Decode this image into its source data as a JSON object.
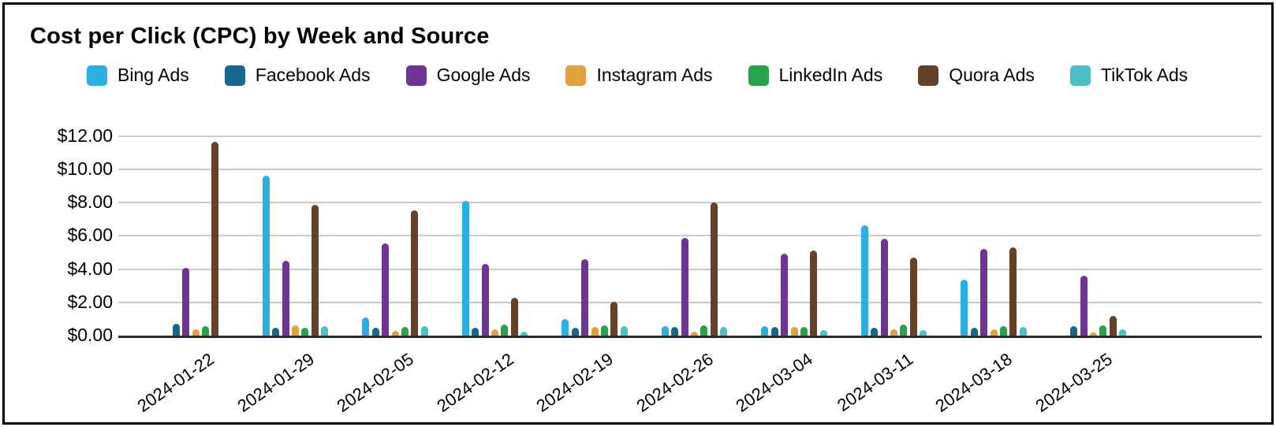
{
  "title": "Cost per Click (CPC) by Week and Source",
  "chart_data": {
    "type": "bar",
    "title": "Cost per Click (CPC) by Week and Source",
    "xlabel": "",
    "ylabel": "",
    "ylim": [
      0,
      12
    ],
    "ytick_step": 2,
    "yticks": [
      "$0.00",
      "$2.00",
      "$4.00",
      "$6.00",
      "$8.00",
      "$10.00",
      "$12.00"
    ],
    "grid": true,
    "legend_position": "top",
    "categories": [
      "2024-01-22",
      "2024-01-29",
      "2024-02-05",
      "2024-02-12",
      "2024-02-19",
      "2024-02-26",
      "2024-03-04",
      "2024-03-11",
      "2024-03-18",
      "2024-03-25"
    ],
    "series": [
      {
        "name": "Bing Ads",
        "color": "#29b0e3",
        "values": [
          0,
          9.6,
          1.1,
          8.1,
          1.0,
          0.55,
          0.55,
          6.65,
          3.35,
          0
        ]
      },
      {
        "name": "Facebook Ads",
        "color": "#17688f",
        "values": [
          0.7,
          0.45,
          0.45,
          0.45,
          0.45,
          0.5,
          0.5,
          0.45,
          0.45,
          0.55
        ]
      },
      {
        "name": "Google Ads",
        "color": "#6f3494",
        "values": [
          4.05,
          4.5,
          5.55,
          4.3,
          4.6,
          5.85,
          4.9,
          5.8,
          5.2,
          3.6
        ]
      },
      {
        "name": "Instagram Ads",
        "color": "#e3a13c",
        "values": [
          0.4,
          0.6,
          0.3,
          0.4,
          0.5,
          0.25,
          0.5,
          0.4,
          0.4,
          0.2
        ]
      },
      {
        "name": "LinkedIn Ads",
        "color": "#28a349",
        "values": [
          0.55,
          0.45,
          0.5,
          0.65,
          0.6,
          0.6,
          0.5,
          0.65,
          0.55,
          0.6
        ]
      },
      {
        "name": "Quora Ads",
        "color": "#654227",
        "values": [
          11.65,
          7.85,
          7.55,
          2.25,
          2.05,
          8.0,
          5.1,
          4.7,
          5.3,
          1.2
        ]
      },
      {
        "name": "TikTok Ads",
        "color": "#4cc0c4",
        "values": [
          0,
          0.55,
          0.55,
          0.25,
          0.55,
          0.5,
          0.35,
          0.35,
          0.5,
          0.4
        ]
      }
    ]
  }
}
